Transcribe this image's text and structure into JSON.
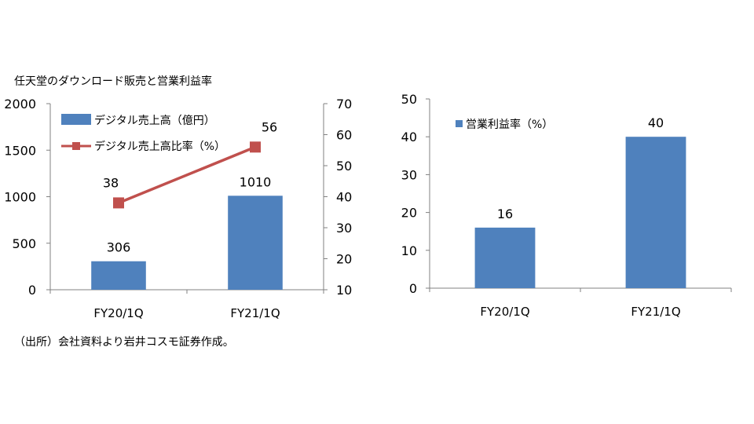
{
  "colors": {
    "bar": "#4F81BD",
    "line": "#C0504D",
    "axis": "#808080",
    "text": "#000000"
  },
  "source_note": "（出所）会社資料より岩井コスモ証券作成。",
  "chart_data": [
    {
      "type": "bar",
      "title": "任天堂のダウンロード販売と営業利益率",
      "categories": [
        "FY20/1Q",
        "FY21/1Q"
      ],
      "ylim": [
        0,
        2000
      ],
      "y_ticks": [
        "0",
        "500",
        "1000",
        "1500",
        "2000"
      ],
      "y2lim": [
        10,
        70
      ],
      "y2_ticks": [
        "10",
        "20",
        "30",
        "40",
        "50",
        "60",
        "70"
      ],
      "legend_position": "top-left",
      "grid": false,
      "series": [
        {
          "name": "デジタル売上高（億円）",
          "kind": "bar",
          "axis": "left",
          "values": [
            306,
            1010
          ],
          "labels": [
            "306",
            "1010"
          ]
        },
        {
          "name": "デジタル売上高比率（%）",
          "kind": "line",
          "axis": "right",
          "values": [
            38,
            56
          ],
          "labels": [
            "38",
            "56"
          ]
        }
      ]
    },
    {
      "type": "bar",
      "title": "",
      "categories": [
        "FY20/1Q",
        "FY21/1Q"
      ],
      "ylim": [
        0,
        50
      ],
      "y_ticks": [
        "0",
        "10",
        "20",
        "30",
        "40",
        "50"
      ],
      "legend_position": "top-left",
      "grid": false,
      "series": [
        {
          "name": "営業利益率（%）",
          "kind": "bar",
          "axis": "left",
          "values": [
            16,
            40
          ],
          "labels": [
            "16",
            "40"
          ]
        }
      ]
    }
  ]
}
